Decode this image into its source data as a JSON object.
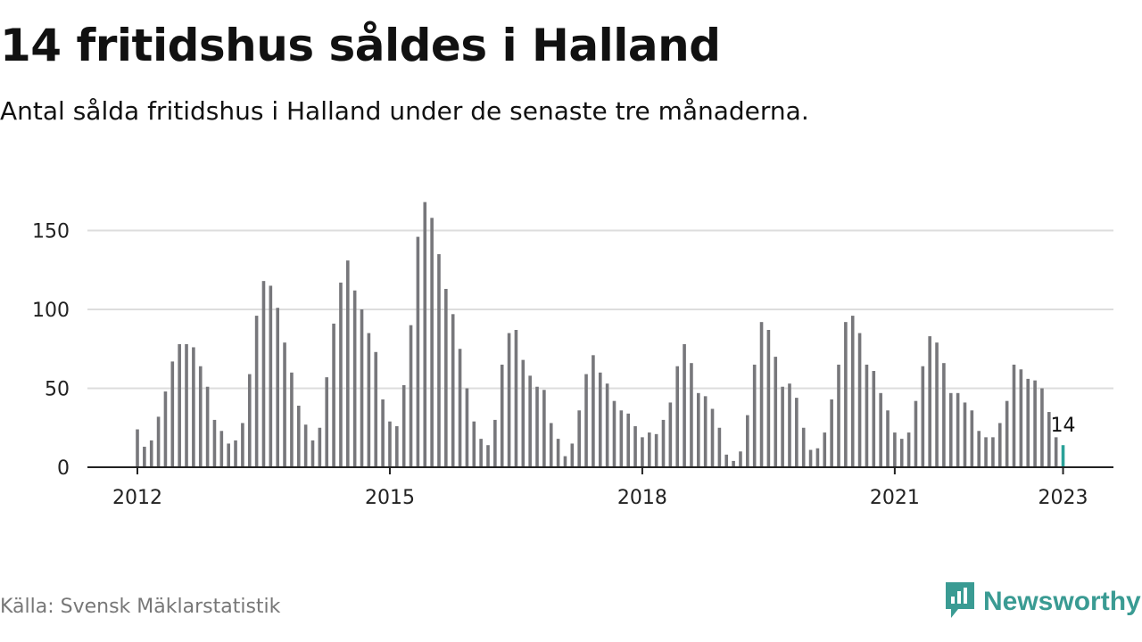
{
  "header": {
    "title": "14 fritidshus såldes i Halland",
    "subtitle": "Antal sålda fritidshus i Halland under de senaste tre månaderna."
  },
  "footer": {
    "source": "Källa: Svensk Mäklarstatistik",
    "brand": "Newsworthy"
  },
  "colors": {
    "bar": "#77777b",
    "highlight": "#2aa198",
    "grid": "#dddddd",
    "axis": "#222222",
    "brand": "#3a9b93"
  },
  "icons": {
    "brand_logo": "newsworthy-logo-icon"
  },
  "chart_data": {
    "type": "bar",
    "title": "14 fritidshus såldes i Halland",
    "subtitle": "Antal sålda fritidshus i Halland under de senaste tre månaderna.",
    "xlabel": "",
    "ylabel": "",
    "x_start": "2012-01",
    "x_end": "2023-01",
    "frequency": "monthly",
    "x_ticks": [
      "2012",
      "2015",
      "2018",
      "2021",
      "2023"
    ],
    "y_ticks": [
      0,
      50,
      100,
      150
    ],
    "ylim": [
      0,
      170
    ],
    "grid": true,
    "legend": "none",
    "values": [
      24,
      13,
      17,
      32,
      48,
      67,
      78,
      78,
      76,
      64,
      51,
      30,
      23,
      15,
      17,
      28,
      59,
      96,
      118,
      115,
      101,
      79,
      60,
      39,
      27,
      17,
      25,
      57,
      91,
      117,
      131,
      112,
      100,
      85,
      73,
      43,
      29,
      26,
      52,
      90,
      146,
      168,
      158,
      135,
      113,
      97,
      75,
      50,
      29,
      18,
      14,
      30,
      65,
      85,
      87,
      68,
      58,
      51,
      49,
      28,
      18,
      7,
      15,
      36,
      59,
      71,
      60,
      53,
      42,
      36,
      34,
      26,
      19,
      22,
      21,
      30,
      41,
      64,
      78,
      66,
      47,
      45,
      37,
      25,
      8,
      4,
      10,
      33,
      65,
      92,
      87,
      70,
      51,
      53,
      44,
      25,
      11,
      12,
      22,
      43,
      65,
      92,
      96,
      85,
      65,
      61,
      47,
      36,
      22,
      18,
      22,
      42,
      64,
      83,
      79,
      66,
      47,
      47,
      41,
      36,
      23,
      19,
      19,
      28,
      42,
      65,
      62,
      56,
      55,
      50,
      35,
      19,
      14
    ],
    "highlight_last": true,
    "annotation": "14"
  }
}
